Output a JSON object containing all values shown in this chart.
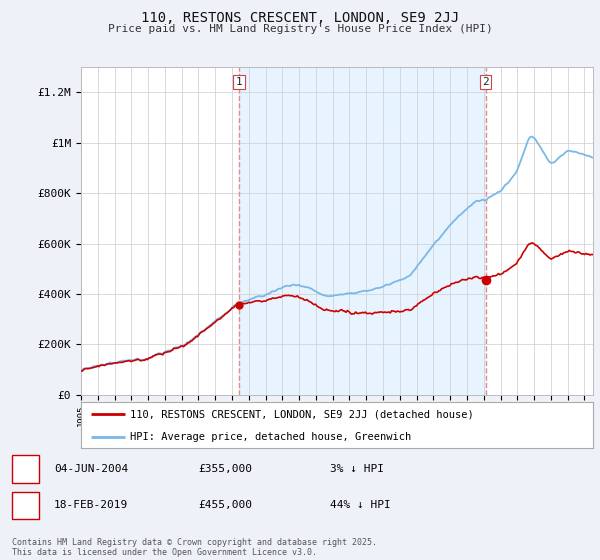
{
  "title1": "110, RESTONS CRESCENT, LONDON, SE9 2JJ",
  "title2": "Price paid vs. HM Land Registry's House Price Index (HPI)",
  "ylabel_ticks": [
    "£0",
    "£200K",
    "£400K",
    "£600K",
    "£800K",
    "£1M",
    "£1.2M"
  ],
  "ytick_values": [
    0,
    200000,
    400000,
    600000,
    800000,
    1000000,
    1200000
  ],
  "ylim": [
    0,
    1300000
  ],
  "xlim_start": 1995.0,
  "xlim_end": 2025.5,
  "hpi_color": "#7ab8e8",
  "price_color": "#cc0000",
  "vline_color": "#e08080",
  "shade_color": "#ddeeff",
  "marker1_year": 2004.42,
  "marker2_year": 2019.12,
  "sale1_price_val": 355000,
  "sale2_price_val": 455000,
  "sale1_date": "04-JUN-2004",
  "sale1_price": "£355,000",
  "sale1_hpi": "3% ↓ HPI",
  "sale2_date": "18-FEB-2019",
  "sale2_price": "£455,000",
  "sale2_hpi": "44% ↓ HPI",
  "legend_line1": "110, RESTONS CRESCENT, LONDON, SE9 2JJ (detached house)",
  "legend_line2": "HPI: Average price, detached house, Greenwich",
  "footer": "Contains HM Land Registry data © Crown copyright and database right 2025.\nThis data is licensed under the Open Government Licence v3.0.",
  "background_color": "#eef2f8",
  "plot_bg_color": "#ffffff"
}
